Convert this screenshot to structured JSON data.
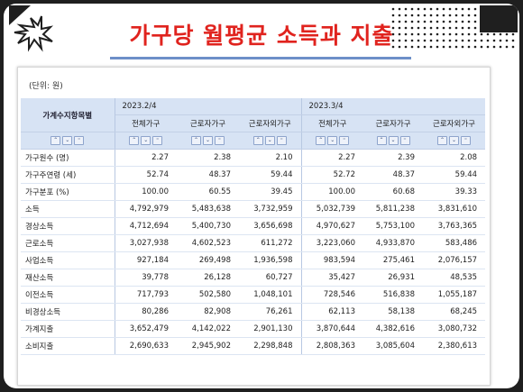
{
  "slide": {
    "title": "가구당 월평균 소득과 지출",
    "accent_color": "#e0231e"
  },
  "table": {
    "unit_label": "(단위: 원)",
    "row_header": "가계수지항목별",
    "periods": [
      "2023.2/4",
      "2023.3/4"
    ],
    "columns": [
      "전체가구",
      "근로자가구",
      "근로자외가구",
      "전체가구",
      "근로자가구",
      "근로자외가구"
    ],
    "sort_controls": [
      "sort-up-icon",
      "sort-reset-icon",
      "sort-down-icon"
    ],
    "rows": [
      {
        "label": "가구원수 (명)",
        "values": [
          "2.27",
          "2.38",
          "2.10",
          "2.27",
          "2.39",
          "2.08"
        ]
      },
      {
        "label": "가구주연령 (세)",
        "values": [
          "52.74",
          "48.37",
          "59.44",
          "52.72",
          "48.37",
          "59.44"
        ]
      },
      {
        "label": "가구분포 (%)",
        "values": [
          "100.00",
          "60.55",
          "39.45",
          "100.00",
          "60.68",
          "39.33"
        ]
      },
      {
        "label": "소득",
        "values": [
          "4,792,979",
          "5,483,638",
          "3,732,959",
          "5,032,739",
          "5,811,238",
          "3,831,610"
        ]
      },
      {
        "label": "경상소득",
        "values": [
          "4,712,694",
          "5,400,730",
          "3,656,698",
          "4,970,627",
          "5,753,100",
          "3,763,365"
        ]
      },
      {
        "label": "근로소득",
        "values": [
          "3,027,938",
          "4,602,523",
          "611,272",
          "3,223,060",
          "4,933,870",
          "583,486"
        ]
      },
      {
        "label": "사업소득",
        "values": [
          "927,184",
          "269,498",
          "1,936,598",
          "983,594",
          "275,461",
          "2,076,157"
        ]
      },
      {
        "label": "재산소득",
        "values": [
          "39,778",
          "26,128",
          "60,727",
          "35,427",
          "26,931",
          "48,535"
        ]
      },
      {
        "label": "이전소득",
        "values": [
          "717,793",
          "502,580",
          "1,048,101",
          "728,546",
          "516,838",
          "1,055,187"
        ]
      },
      {
        "label": "비경상소득",
        "values": [
          "80,286",
          "82,908",
          "76,261",
          "62,113",
          "58,138",
          "68,245"
        ]
      },
      {
        "label": "가계지출",
        "values": [
          "3,652,479",
          "4,142,022",
          "2,901,130",
          "3,870,644",
          "4,382,616",
          "3,080,732"
        ]
      },
      {
        "label": "소비지출",
        "values": [
          "2,690,633",
          "2,945,902",
          "2,298,848",
          "2,808,363",
          "3,085,604",
          "2,380,613"
        ]
      }
    ]
  }
}
